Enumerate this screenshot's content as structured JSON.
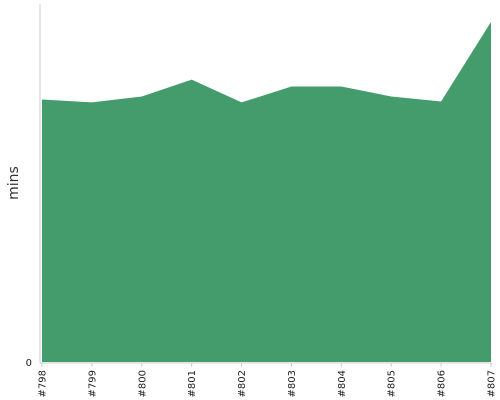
{
  "chart_data": {
    "type": "area",
    "categories": [
      "#798",
      "#799",
      "#800",
      "#801",
      "#802",
      "#803",
      "#804",
      "#805",
      "#806",
      "#807"
    ],
    "values": [
      26.4,
      26.1,
      26.7,
      28.4,
      26.1,
      27.7,
      27.7,
      26.7,
      26.2,
      34.2
    ],
    "ylabel": "mins",
    "y_tick_labels": [
      "0"
    ],
    "ylim": [
      0,
      36
    ],
    "grid": false,
    "fill_color": "#449c6c"
  }
}
